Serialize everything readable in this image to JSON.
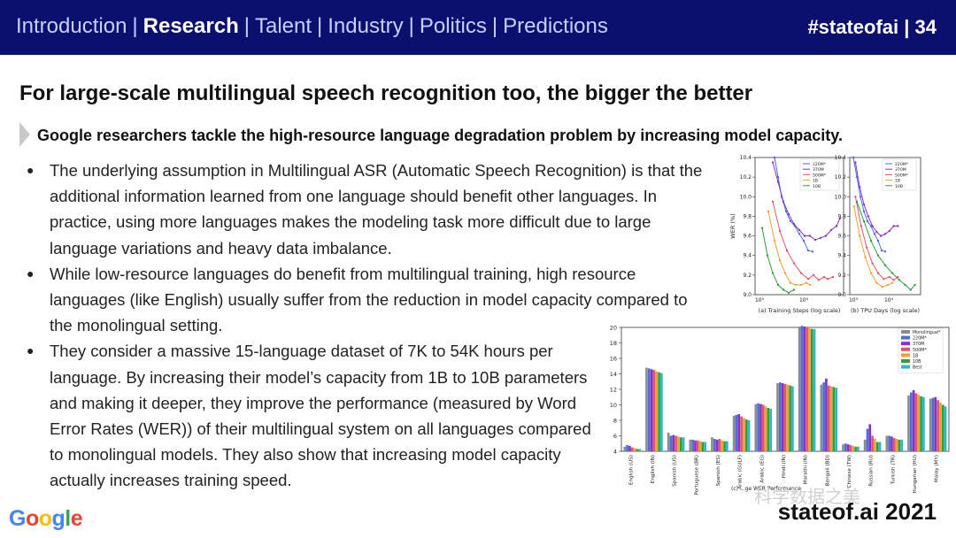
{
  "nav": {
    "items": [
      "Introduction",
      "Research",
      "Talent",
      "Industry",
      "Politics",
      "Predictions"
    ],
    "active": "Research",
    "tag": "#stateofai | 34"
  },
  "slide": {
    "title": "For large-scale multilingual speech recognition too, the bigger the better",
    "subtitle": "Google researchers tackle the high-resource language degradation problem by increasing model capacity.",
    "bullets": [
      "The underlying assumption in Multilingual ASR (Automatic Speech Recognition) is that the additional information learned from one language should benefit other languages. In practice, using more languages makes the modeling task more difficult due to large language variations and heavy data imbalance.",
      "While low-resource languages do benefit from multilingual training, high resource languages (like English) usually suffer from the reduction in model capacity compared to the monolingual setting.",
      "They consider a massive 15-language dataset of 7K to 54K hours per language. By increasing their model’s capacity from 1B to 10B parameters and making it deeper, they improve the performance (measured by Word Error Rates (WER)) of their multilingual system on all languages compared to monolingual models. They also show that increasing model capacity actually increases training speed."
    ]
  },
  "footer": {
    "logo": "Google",
    "brand": "stateof.ai 2021",
    "watermark": "科学数据之美"
  },
  "colors": {
    "topbar": "#0b0f6d",
    "series": {
      "Monolingual*": "#8c8c8c",
      "220M*": "#4a6fd6",
      "370M": "#8b2fc9",
      "500M*": "#e0556b",
      "1B": "#f0a030",
      "10B": "#2e9e3e",
      "Best": "#32b5c5"
    }
  },
  "chart_data": [
    {
      "type": "line",
      "xlabel": "(a) Training Steps (log scale)",
      "ylabel": "WER (%)",
      "xtick_labels": [
        "10⁵",
        "10⁶"
      ],
      "ylim": [
        9.0,
        10.4
      ],
      "yticks": [
        9.0,
        9.2,
        9.4,
        9.6,
        9.8,
        10.0,
        10.2,
        10.4
      ],
      "series": [
        {
          "name": "220M*",
          "x": [
            0.22,
            0.26,
            0.3,
            0.35,
            0.4,
            0.45,
            0.5,
            0.55,
            0.6,
            0.65
          ],
          "values": [
            10.4,
            10.2,
            10.0,
            9.85,
            9.75,
            9.7,
            9.62,
            9.55,
            9.45,
            9.44
          ]
        },
        {
          "name": "370M",
          "x": [
            0.2,
            0.26,
            0.32,
            0.38,
            0.44,
            0.5,
            0.56,
            0.62,
            0.68,
            0.74,
            0.8,
            0.86,
            0.92,
            0.96
          ],
          "values": [
            10.35,
            10.15,
            9.95,
            9.82,
            9.72,
            9.66,
            9.6,
            9.6,
            9.56,
            9.58,
            9.6,
            9.66,
            9.7,
            9.78
          ]
        },
        {
          "name": "500M*",
          "x": [
            0.2,
            0.28,
            0.36,
            0.44,
            0.52,
            0.6,
            0.66,
            0.72,
            0.78,
            0.82,
            0.88
          ],
          "values": [
            9.95,
            9.65,
            9.45,
            9.32,
            9.22,
            9.16,
            9.2,
            9.15,
            9.18,
            9.16,
            9.18
          ]
        },
        {
          "name": "1B",
          "x": [
            0.15,
            0.22,
            0.28,
            0.34,
            0.4,
            0.46,
            0.52,
            0.58,
            0.62
          ],
          "values": [
            9.85,
            9.55,
            9.35,
            9.22,
            9.12,
            9.1,
            9.1,
            9.12,
            9.1
          ]
        },
        {
          "name": "10B",
          "x": [
            0.08,
            0.14,
            0.2,
            0.26,
            0.32,
            0.38,
            0.44
          ],
          "values": [
            9.68,
            9.4,
            9.22,
            9.1,
            9.05,
            9.02,
            9.05
          ]
        }
      ],
      "legend": "top-right"
    },
    {
      "type": "line",
      "xlabel": "(b) TPU Days (log scale)",
      "ylabel": "",
      "xtick_labels": [
        "10³",
        "10⁴"
      ],
      "ylim": [
        9.0,
        10.4
      ],
      "yticks": [
        9.0,
        9.2,
        9.4,
        9.6,
        9.8,
        10.0,
        10.2,
        10.4
      ],
      "series": [
        {
          "name": "220M*",
          "x": [
            0.05,
            0.1,
            0.15,
            0.2,
            0.25,
            0.3,
            0.35,
            0.4,
            0.45,
            0.5
          ],
          "values": [
            10.4,
            10.2,
            10.0,
            9.85,
            9.75,
            9.7,
            9.62,
            9.55,
            9.45,
            9.44
          ]
        },
        {
          "name": "370M",
          "x": [
            0.08,
            0.14,
            0.2,
            0.26,
            0.32,
            0.38,
            0.44,
            0.5,
            0.56,
            0.62,
            0.68
          ],
          "values": [
            10.35,
            10.1,
            9.92,
            9.8,
            9.7,
            9.64,
            9.6,
            9.62,
            9.65,
            9.7,
            9.7
          ]
        },
        {
          "name": "500M*",
          "x": [
            0.08,
            0.16,
            0.24,
            0.32,
            0.4,
            0.48,
            0.56,
            0.62,
            0.68
          ],
          "values": [
            10.0,
            9.7,
            9.48,
            9.32,
            9.22,
            9.16,
            9.18,
            9.15,
            9.18
          ]
        },
        {
          "name": "1B",
          "x": [
            0.06,
            0.14,
            0.22,
            0.3,
            0.38,
            0.46,
            0.54,
            0.6
          ],
          "values": [
            9.9,
            9.6,
            9.38,
            9.22,
            9.12,
            9.08,
            9.1,
            9.12
          ]
        },
        {
          "name": "10B",
          "x": [
            0.1,
            0.2,
            0.3,
            0.4,
            0.5,
            0.6,
            0.7,
            0.78,
            0.86,
            0.92
          ],
          "values": [
            9.95,
            9.75,
            9.55,
            9.4,
            9.3,
            9.22,
            9.15,
            9.1,
            9.05,
            9.1
          ]
        }
      ],
      "legend": "top-right"
    },
    {
      "type": "bar",
      "title": "(c) ...ge WER Performance",
      "categories": [
        "English (US)",
        "English (IN)",
        "Spanish (US)",
        "Portuguese (BR)",
        "Spanish (ES)",
        "Arabic (GULF)",
        "Arabic (EG)",
        "Hindi (IN)",
        "Marathi (IN)",
        "Bengali (BD)",
        "Chinese (TW)",
        "Russian (RU)",
        "Turkish (TR)",
        "Hungarian (HU)",
        "Malay (MY)"
      ],
      "ylim": [
        4,
        20
      ],
      "yticks": [
        4,
        6,
        8,
        10,
        12,
        14,
        16,
        18,
        20
      ],
      "series": [
        {
          "name": "Monolingual*",
          "values": [
            4.6,
            14.8,
            6.4,
            5.5,
            5.8,
            8.6,
            10.1,
            12.8,
            20.1,
            12.6,
            4.9,
            5.5,
            6.0,
            11.2,
            10.8
          ]
        },
        {
          "name": "220M*",
          "values": [
            4.8,
            14.7,
            6.0,
            5.5,
            5.6,
            8.7,
            10.2,
            12.9,
            20.2,
            12.9,
            5.0,
            6.9,
            6.0,
            11.6,
            10.9
          ]
        },
        {
          "name": "370M",
          "values": [
            4.7,
            14.6,
            6.1,
            5.4,
            5.5,
            8.8,
            10.1,
            12.8,
            20.1,
            13.4,
            4.9,
            7.5,
            5.9,
            11.9,
            11.0
          ]
        },
        {
          "name": "500M*",
          "values": [
            4.5,
            14.5,
            6.0,
            5.4,
            5.6,
            8.5,
            10.0,
            12.7,
            20.0,
            12.5,
            4.8,
            6.0,
            5.7,
            11.5,
            10.6
          ]
        },
        {
          "name": "1B",
          "values": [
            4.4,
            14.3,
            5.9,
            5.3,
            5.4,
            8.3,
            9.8,
            12.6,
            19.9,
            12.4,
            4.7,
            5.6,
            5.6,
            11.3,
            10.3
          ]
        },
        {
          "name": "10B",
          "values": [
            4.3,
            14.2,
            5.8,
            5.2,
            5.3,
            8.1,
            9.6,
            12.5,
            19.8,
            12.3,
            4.6,
            5.2,
            5.5,
            11.1,
            10.0
          ]
        },
        {
          "name": "Best",
          "values": [
            4.3,
            14.1,
            5.8,
            5.2,
            5.3,
            8.0,
            9.5,
            12.4,
            19.8,
            12.2,
            4.6,
            5.2,
            5.5,
            11.0,
            9.8
          ]
        }
      ],
      "legend": "top-right"
    }
  ]
}
